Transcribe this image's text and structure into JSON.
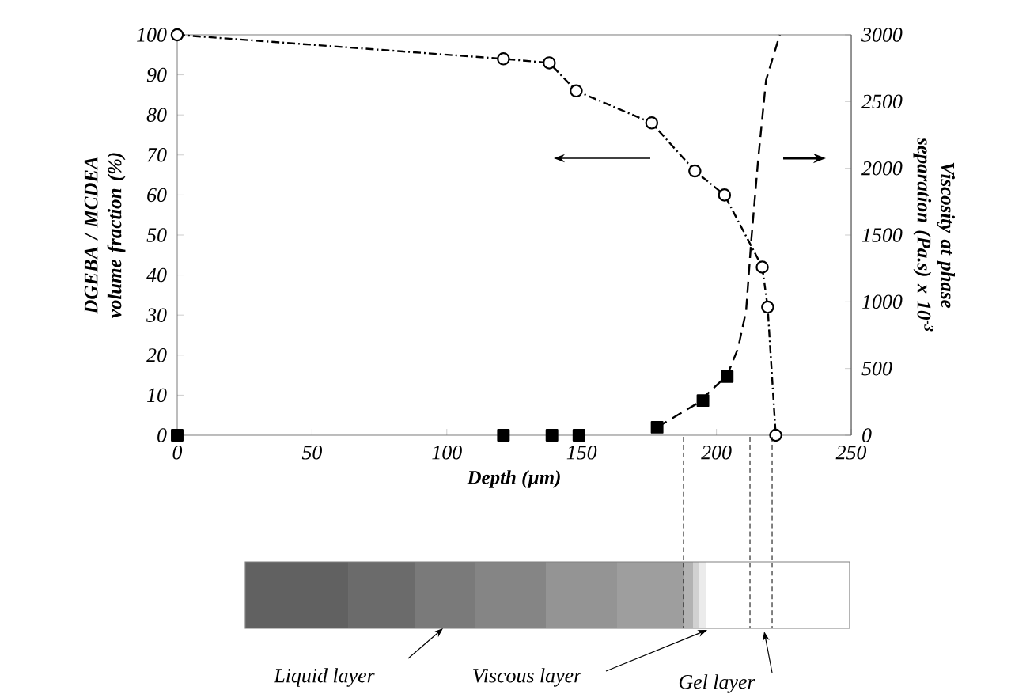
{
  "chart_data": {
    "type": "line",
    "xlabel": "Depth (µm)",
    "ylabel": "DGEBA / MCDEA volume fraction (%)",
    "y2label": "Viscosity at phase separation (Pa.s) x 10$^{-3}$",
    "xlim": [
      0,
      250
    ],
    "xticks": [
      0,
      50,
      100,
      150,
      200,
      250
    ],
    "ylim": [
      0,
      100
    ],
    "yticks": [
      0,
      10,
      20,
      30,
      40,
      50,
      60,
      70,
      80,
      90,
      100
    ],
    "y2lim": [
      0,
      3000
    ],
    "y2ticks": [
      0,
      500,
      1000,
      1500,
      2000,
      2500,
      3000
    ],
    "series": [
      {
        "type": "line",
        "axis": "y2",
        "color": "#000000",
        "marker": "none",
        "line_style": "dashed",
        "x": [
          178,
          193,
          204,
          208,
          211,
          213,
          215.5,
          218.4,
          223.5
        ],
        "values": [
          60,
          240,
          450,
          650,
          930,
          1480,
          2070,
          2660,
          3000
        ]
      },
      {
        "type": "scatter",
        "axis": "y2",
        "color": "#000000",
        "marker": "square",
        "x": [
          0,
          121,
          139,
          149,
          178,
          195,
          204
        ],
        "values": [
          0,
          0,
          0,
          0,
          60,
          260,
          440
        ]
      },
      {
        "color": "#000000",
        "marker": "circle",
        "line_style": "dashdot",
        "x": [
          0,
          121,
          138,
          148,
          176,
          192,
          203,
          217,
          219,
          222
        ],
        "values": [
          100,
          94,
          93,
          86,
          78,
          66,
          60,
          42,
          32,
          0
        ]
      }
    ],
    "annotations": [
      "Liquid layer",
      "Viscous layer",
      "Gel layer"
    ]
  }
}
